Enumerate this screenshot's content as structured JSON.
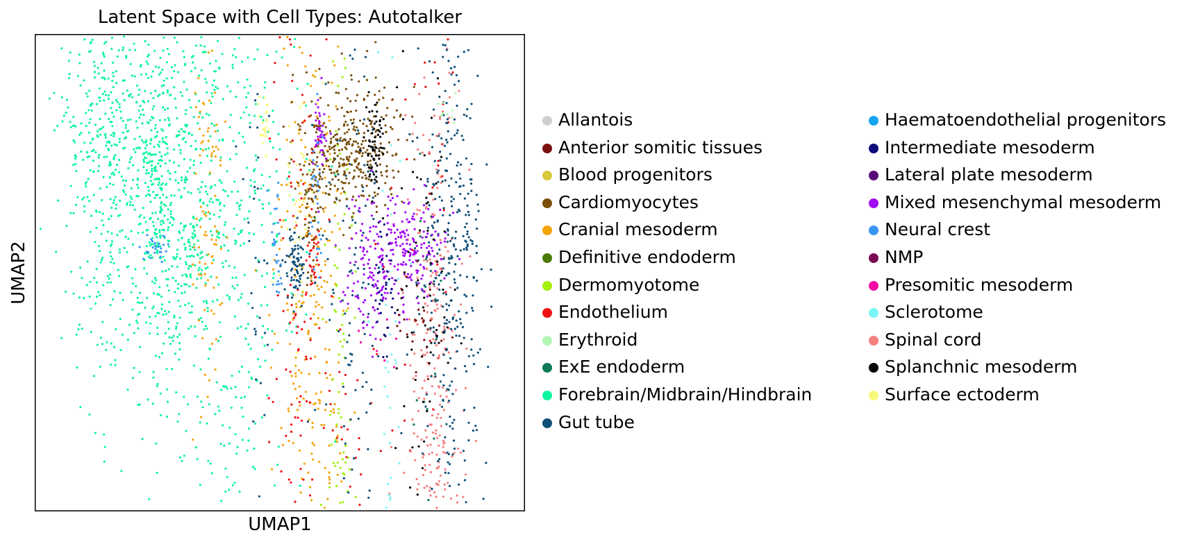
{
  "chart_data": {
    "type": "scatter",
    "title": "Latent Space with Cell Types: Autotalker",
    "xlabel": "UMAP1",
    "ylabel": "UMAP2",
    "xticks": [],
    "yticks": [],
    "xlim": [
      0,
      100
    ],
    "ylim": [
      0,
      100
    ],
    "legend_position": "right",
    "legend_columns": 2,
    "series": [
      {
        "name": "Allantois",
        "color": "#d0cdd0"
      },
      {
        "name": "Anterior somitic tissues",
        "color": "#7a1010"
      },
      {
        "name": "Blood progenitors",
        "color": "#d8c83c"
      },
      {
        "name": "Cardiomyocytes",
        "color": "#7a4f0a"
      },
      {
        "name": "Cranial mesoderm",
        "color": "#f5a30a"
      },
      {
        "name": "Definitive endoderm",
        "color": "#4a7a0a"
      },
      {
        "name": "Dermomyotome",
        "color": "#a2f00c"
      },
      {
        "name": "Endothelium",
        "color": "#f01010"
      },
      {
        "name": "Erythroid",
        "color": "#b3f5b3"
      },
      {
        "name": "ExE endoderm",
        "color": "#0f7a5a"
      },
      {
        "name": "Forebrain/Midbrain/Hindbrain",
        "color": "#0ff5a0"
      },
      {
        "name": "Gut tube",
        "color": "#0e4f78"
      },
      {
        "name": "Haematoendothelial progenitors",
        "color": "#16a5f0"
      },
      {
        "name": "Intermediate mesoderm",
        "color": "#0a0a7a"
      },
      {
        "name": "Lateral plate mesoderm",
        "color": "#580a7a"
      },
      {
        "name": "Mixed mesenchymal mesoderm",
        "color": "#a30af5"
      },
      {
        "name": "Neural crest",
        "color": "#3a96f5"
      },
      {
        "name": "NMP",
        "color": "#7a0a55"
      },
      {
        "name": "Presomitic mesoderm",
        "color": "#f50aa3"
      },
      {
        "name": "Sclerotome",
        "color": "#7af5f5"
      },
      {
        "name": "Spinal cord",
        "color": "#f58080"
      },
      {
        "name": "Splanchnic mesoderm",
        "color": "#050505"
      },
      {
        "name": "Surface ectoderm",
        "color": "#f8f87a"
      }
    ]
  }
}
